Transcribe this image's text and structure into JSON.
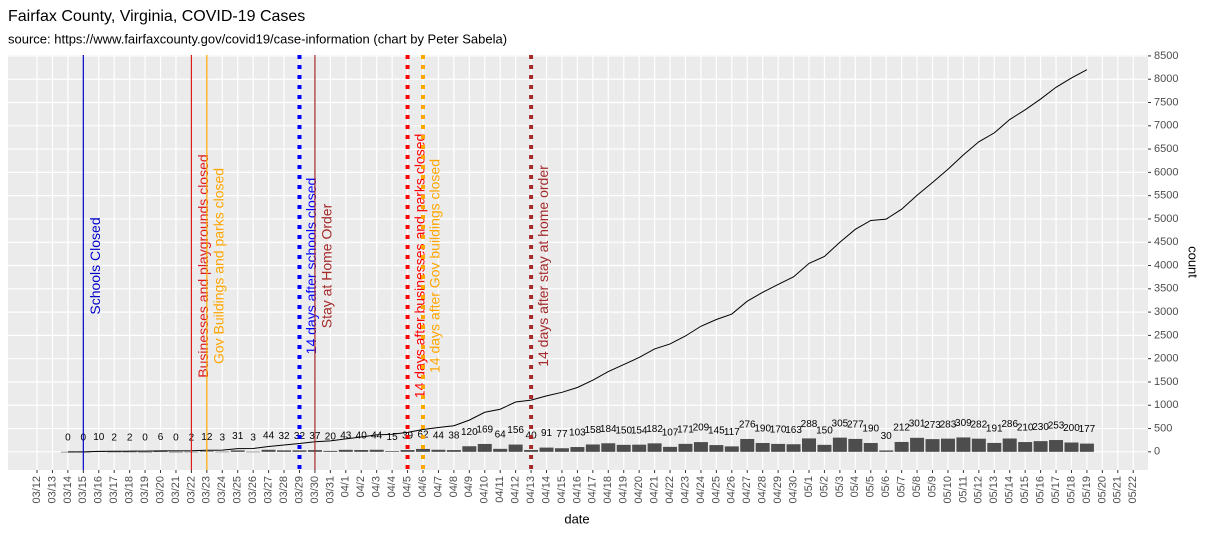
{
  "chart_data": {
    "type": "combo",
    "title": "Fairfax County, Virginia, COVID-19 Cases",
    "subtitle": "source: https://www.fairfaxcounty.gov/covid19/case-information (chart by Peter Sabela)",
    "x_label": "date",
    "y_label": "count",
    "categories": [
      "03/12",
      "03/13",
      "03/14",
      "03/15",
      "03/16",
      "03/17",
      "03/18",
      "03/19",
      "03/20",
      "03/21",
      "03/22",
      "03/23",
      "03/24",
      "03/25",
      "03/26",
      "03/27",
      "03/28",
      "03/29",
      "03/30",
      "03/31",
      "04/1",
      "04/2",
      "04/3",
      "04/4",
      "04/5",
      "04/6",
      "04/7",
      "04/8",
      "04/9",
      "04/10",
      "04/11",
      "04/12",
      "04/13",
      "04/14",
      "04/15",
      "04/16",
      "04/17",
      "04/18",
      "04/19",
      "04/20",
      "04/21",
      "04/22",
      "04/23",
      "04/24",
      "04/25",
      "04/26",
      "04/27",
      "04/28",
      "04/29",
      "04/30",
      "05/1",
      "05/2",
      "05/3",
      "05/4",
      "05/5",
      "05/6",
      "05/7",
      "05/8",
      "05/9",
      "05/10",
      "05/11",
      "05/12",
      "05/13",
      "05/14",
      "05/15",
      "05/16",
      "05/17",
      "05/18",
      "05/19",
      "05/20",
      "05/21",
      "05/22"
    ],
    "series": [
      {
        "type": "bar",
        "color": "#4d4d4d",
        "labels": true,
        "values": [
          null,
          null,
          0,
          0,
          10,
          2,
          2,
          0,
          6,
          0,
          2,
          12,
          3,
          31,
          3,
          44,
          32,
          32,
          37,
          20,
          43,
          40,
          44,
          15,
          39,
          62,
          44,
          38,
          120,
          169,
          64,
          156,
          40,
          91,
          77,
          103,
          158,
          184,
          150,
          154,
          182,
          107,
          171,
          209,
          145,
          117,
          276,
          190,
          170,
          163,
          288,
          150,
          305,
          277,
          190,
          30,
          212,
          301,
          273,
          283,
          309,
          282,
          191,
          286,
          210,
          230,
          253,
          200,
          177,
          null,
          null,
          null
        ]
      },
      {
        "type": "line",
        "color": "#000000",
        "values": [
          null,
          null,
          0,
          0,
          10,
          12,
          14,
          14,
          20,
          20,
          22,
          34,
          37,
          68,
          71,
          115,
          147,
          179,
          216,
          236,
          279,
          319,
          363,
          378,
          417,
          479,
          523,
          561,
          681,
          850,
          914,
          1070,
          1110,
          1201,
          1278,
          1381,
          1539,
          1723,
          1873,
          2027,
          2209,
          2316,
          2487,
          2696,
          2841,
          2958,
          3234,
          3424,
          3594,
          3757,
          4045,
          4195,
          4500,
          4777,
          4967,
          4997,
          5209,
          5510,
          5783,
          6066,
          6375,
          6657,
          6848,
          7134,
          7344,
          7574,
          7827,
          8027,
          8204,
          null,
          null,
          null
        ]
      }
    ],
    "annotations": [
      {
        "x": "03/15",
        "label": "Schools Closed",
        "color": "#0000cd",
        "dash": "solid"
      },
      {
        "x": "03/22",
        "label": "Businesses and playgrounds closed",
        "color": "#dd1c1c",
        "dash": "solid"
      },
      {
        "x": "03/23",
        "label": "Gov Buildings and parks closed",
        "color": "#ffa500",
        "dash": "solid"
      },
      {
        "x": "03/29",
        "label": "14 days after schools closed",
        "color": "#0000ff",
        "dash": "dotted"
      },
      {
        "x": "03/30",
        "label": "Stay at Home Order",
        "color": "#a52a2a",
        "dash": "solid"
      },
      {
        "x": "04/5",
        "label": "14 days after businesses and parks closed",
        "color": "#ff0000",
        "dash": "dotted"
      },
      {
        "x": "04/6",
        "label": "14 days after Gov buildings closed",
        "color": "#ffa500",
        "dash": "dotted"
      },
      {
        "x": "04/13",
        "label": "14 days after stay at home order",
        "color": "#a52a2a",
        "dash": "dotted"
      }
    ],
    "ylim": [
      -390,
      8520
    ],
    "yticks": [
      0,
      500,
      1000,
      1500,
      2000,
      2500,
      3000,
      3500,
      4000,
      4500,
      5000,
      5500,
      6000,
      6500,
      7000,
      7500,
      8000,
      8500
    ],
    "grid": true
  }
}
